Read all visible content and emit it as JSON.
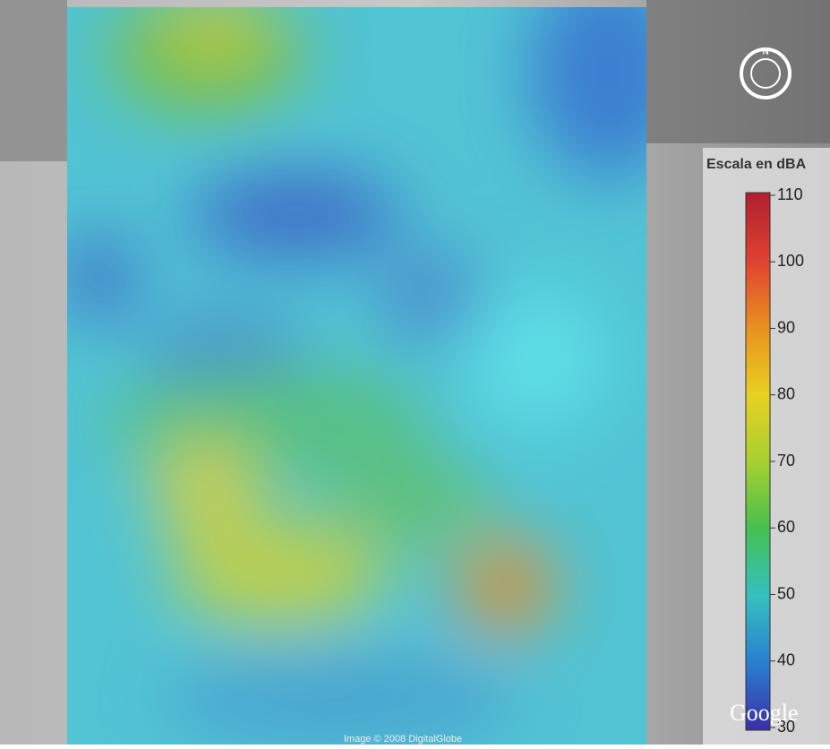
{
  "compass": "N",
  "legend": {
    "title": "Escala en dBA",
    "range": [
      30,
      110
    ],
    "ticks": [
      110,
      100,
      90,
      80,
      70,
      60,
      50,
      40,
      30
    ],
    "colors": [
      "#3a2fa8",
      "#2a7fd0",
      "#35c0c0",
      "#45c050",
      "#a8d030",
      "#e8d020",
      "#e89020",
      "#e04030",
      "#b02030"
    ]
  },
  "attribution": "Image © 2008 DigitalGlobe",
  "logo": "Google"
}
